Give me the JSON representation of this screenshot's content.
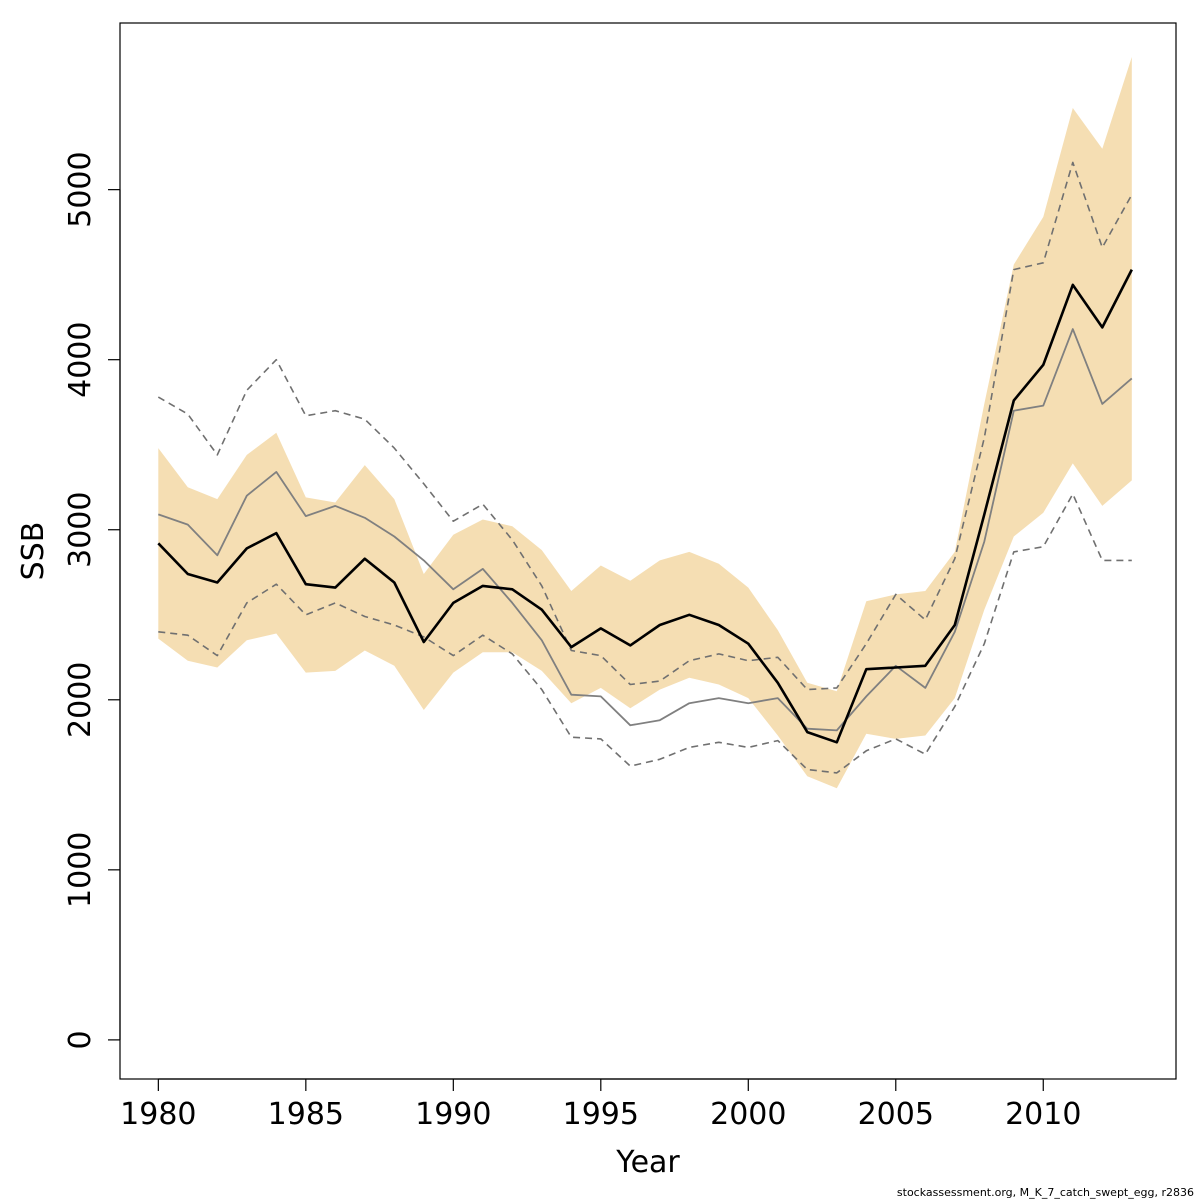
{
  "chart_data": {
    "type": "line",
    "xlabel": "Year",
    "ylabel": "SSB",
    "xlim": [
      1978.7,
      2014.5
    ],
    "ylim": [
      -230,
      5980
    ],
    "x_ticks": [
      1980,
      1985,
      1990,
      1995,
      2000,
      2005,
      2010
    ],
    "y_ticks": [
      0,
      1000,
      2000,
      3000,
      4000,
      5000
    ],
    "grid": false,
    "legend": "none",
    "colors": {
      "band": "#f5deb3",
      "estimate": "#000000",
      "previous": "#808080",
      "previous_ci": "#707070"
    },
    "x": [
      1980,
      1981,
      1982,
      1983,
      1984,
      1985,
      1986,
      1987,
      1988,
      1989,
      1990,
      1991,
      1992,
      1993,
      1994,
      1995,
      1996,
      1997,
      1998,
      1999,
      2000,
      2001,
      2002,
      2003,
      2004,
      2005,
      2006,
      2007,
      2008,
      2009,
      2010,
      2011,
      2012,
      2013
    ],
    "series": [
      {
        "role": "ci-band-upper",
        "values": [
          3480,
          3250,
          3180,
          3440,
          3570,
          3190,
          3160,
          3380,
          3180,
          2740,
          2970,
          3060,
          3020,
          2880,
          2640,
          2790,
          2700,
          2820,
          2870,
          2800,
          2660,
          2410,
          2100,
          2050,
          2580,
          2620,
          2640,
          2870,
          3740,
          4560,
          4840,
          5480,
          5240,
          5780
        ]
      },
      {
        "role": "ci-band-lower",
        "values": [
          2360,
          2230,
          2190,
          2350,
          2390,
          2160,
          2170,
          2290,
          2200,
          1940,
          2160,
          2280,
          2280,
          2170,
          1980,
          2070,
          1950,
          2060,
          2130,
          2090,
          2010,
          1790,
          1550,
          1480,
          1800,
          1770,
          1790,
          2010,
          2530,
          2960,
          3100,
          3390,
          3140,
          3290
        ]
      },
      {
        "role": "estimate",
        "values": [
          2920,
          2740,
          2690,
          2890,
          2980,
          2680,
          2660,
          2830,
          2690,
          2340,
          2570,
          2670,
          2650,
          2530,
          2310,
          2420,
          2320,
          2440,
          2500,
          2440,
          2330,
          2100,
          1810,
          1750,
          2180,
          2190,
          2200,
          2440,
          3090,
          3760,
          3970,
          4440,
          4190,
          4530
        ]
      },
      {
        "role": "previous-estimate",
        "values": [
          3090,
          3030,
          2850,
          3200,
          3340,
          3080,
          3140,
          3070,
          2960,
          2820,
          2650,
          2770,
          2570,
          2350,
          2030,
          2020,
          1850,
          1880,
          1980,
          2010,
          1980,
          2010,
          1830,
          1820,
          2020,
          2200,
          2070,
          2400,
          2930,
          3700,
          3730,
          4180,
          3740,
          3890
        ]
      },
      {
        "role": "previous-upper-ci",
        "values": [
          3780,
          3680,
          3440,
          3820,
          4000,
          3670,
          3700,
          3650,
          3480,
          3270,
          3050,
          3150,
          2940,
          2670,
          2290,
          2260,
          2090,
          2110,
          2230,
          2270,
          2230,
          2250,
          2060,
          2070,
          2330,
          2620,
          2470,
          2830,
          3540,
          4530,
          4570,
          5160,
          4660,
          4970
        ]
      },
      {
        "role": "previous-lower-ci",
        "values": [
          2400,
          2380,
          2260,
          2570,
          2680,
          2500,
          2570,
          2490,
          2440,
          2370,
          2260,
          2380,
          2270,
          2060,
          1780,
          1770,
          1610,
          1650,
          1720,
          1750,
          1720,
          1760,
          1590,
          1570,
          1700,
          1770,
          1680,
          1960,
          2330,
          2870,
          2900,
          3210,
          2820,
          2820
        ]
      }
    ]
  },
  "footnote": "stockassessment.org, M_K_7_catch_swept_egg, r2836"
}
